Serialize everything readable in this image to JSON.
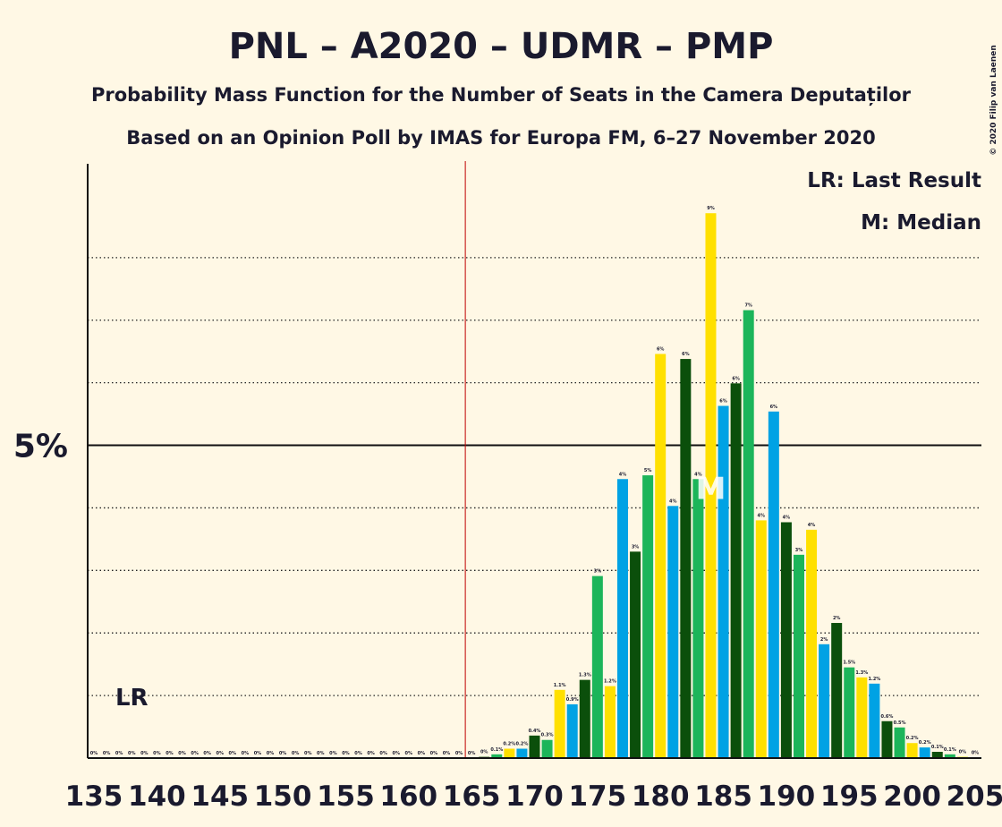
{
  "chart_data": {
    "type": "bar",
    "title": "PNL – A2020 – UDMR – PMP",
    "subtitle": "Probability Mass Function for the Number of Seats in the Camera Deputaților",
    "subtitle2": "Based on an Opinion Poll by IMAS for Europa FM, 6–27 November 2020",
    "copyright": "© 2020 Filip van Laenen",
    "legend": [
      "LR: Last Result",
      "M: Median"
    ],
    "lr_marker": "LR",
    "last_result": 138,
    "median_marker": "M",
    "median": 184,
    "majority": 165,
    "color_cycle": [
      "#ffe000",
      "#00a2e4",
      "#0b4f0b",
      "#1cb55a"
    ],
    "x": [
      135,
      136,
      137,
      138,
      139,
      140,
      141,
      142,
      143,
      144,
      145,
      146,
      147,
      148,
      149,
      150,
      151,
      152,
      153,
      154,
      155,
      156,
      157,
      158,
      159,
      160,
      161,
      162,
      163,
      164,
      165,
      166,
      167,
      168,
      169,
      170,
      171,
      172,
      173,
      174,
      175,
      176,
      177,
      178,
      179,
      180,
      181,
      182,
      183,
      184,
      185,
      186,
      187,
      188,
      189,
      190,
      191,
      192,
      193,
      194,
      195,
      196,
      197,
      198,
      199,
      200,
      201,
      202,
      203,
      204,
      205
    ],
    "values": [
      0,
      0,
      0,
      0,
      0,
      0,
      0,
      0,
      0,
      0,
      0,
      0,
      0,
      0,
      0,
      0,
      0,
      0,
      0,
      0,
      0,
      0,
      0,
      0,
      0,
      0,
      0,
      0,
      0,
      0,
      0,
      0.02,
      0.06,
      0.15,
      0.15,
      0.36,
      0.29,
      1.09,
      0.86,
      1.25,
      2.91,
      1.15,
      4.46,
      3.3,
      4.52,
      6.46,
      4.03,
      6.38,
      4.46,
      8.71,
      5.63,
      5.99,
      7.16,
      3.8,
      5.54,
      3.77,
      3.25,
      3.65,
      1.82,
      2.16,
      1.45,
      1.29,
      1.19,
      0.59,
      0.49,
      0.24,
      0.17,
      0.1,
      0.06,
      0.02,
      0.01
    ],
    "value_labels": [
      "0%",
      "0%",
      "0%",
      "0%",
      "0%",
      "0%",
      "0%",
      "0%",
      "0%",
      "0%",
      "0%",
      "0%",
      "0%",
      "0%",
      "0%",
      "0%",
      "0%",
      "0%",
      "0%",
      "0%",
      "0%",
      "0%",
      "0%",
      "0%",
      "0%",
      "0%",
      "0%",
      "0%",
      "0%",
      "0%",
      "0%",
      "0%",
      "0.1%",
      "0.2%",
      "0.2%",
      "0.4%",
      "0.3%",
      "1.1%",
      "0.9%",
      "1.3%",
      "3%",
      "1.2%",
      "4%",
      "3%",
      "5%",
      "6%",
      "4%",
      "6%",
      "4%",
      "9%",
      "6%",
      "6%",
      "7%",
      "4%",
      "6%",
      "4%",
      "3%",
      "4%",
      "2%",
      "2%",
      "1.5%",
      "1.3%",
      "1.2%",
      "0.6%",
      "0.5%",
      "0.2%",
      "0.2%",
      "0.1%",
      "0.1%",
      "0%",
      "0%"
    ],
    "xlim": [
      134.5,
      205.5
    ],
    "xticks": [
      135,
      140,
      145,
      150,
      155,
      160,
      165,
      170,
      175,
      180,
      185,
      190,
      195,
      200,
      205
    ],
    "ylim": [
      0,
      9.5
    ],
    "yticks": [
      {
        "value": 5,
        "label": "5%"
      }
    ],
    "minor_grid": [
      1,
      2,
      3,
      4,
      6,
      7,
      8
    ]
  }
}
